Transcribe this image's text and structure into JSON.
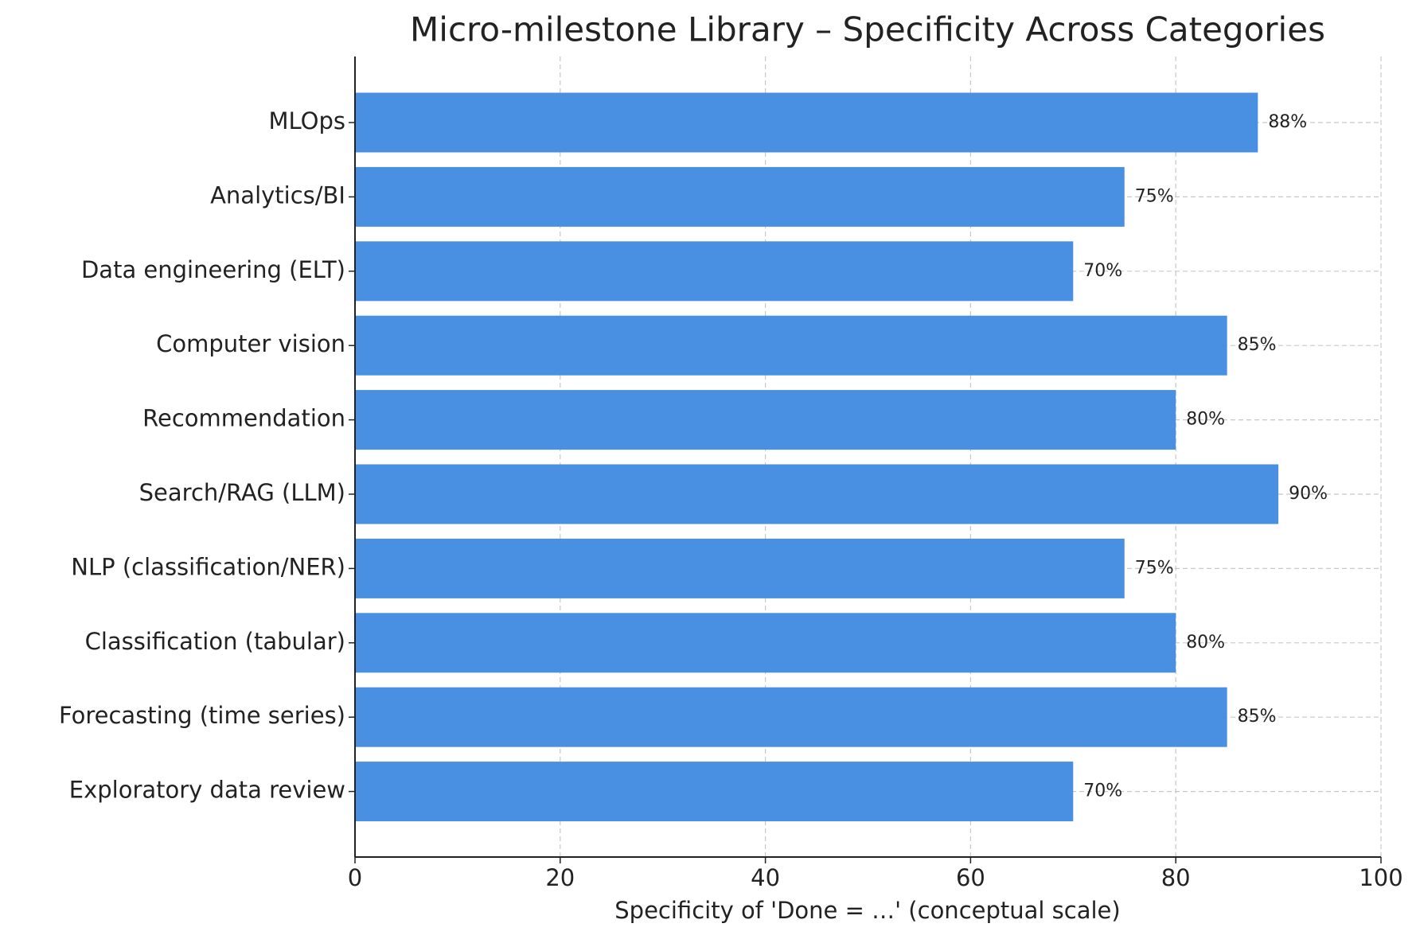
{
  "chart_data": {
    "type": "bar",
    "orientation": "horizontal",
    "title": "Micro-milestone Library – Specificity Across Categories",
    "x_label": "Specificity of 'Done = …' (conceptual scale)",
    "categories": [
      "MLOps",
      "Analytics/BI",
      "Data engineering (ELT)",
      "Computer vision",
      "Recommendation",
      "Search/RAG (LLM)",
      "NLP (classification/NER)",
      "Classification (tabular)",
      "Forecasting (time series)",
      "Exploratory data review"
    ],
    "values": [
      88,
      75,
      70,
      85,
      80,
      90,
      75,
      80,
      85,
      70
    ],
    "value_labels": [
      "88%",
      "75%",
      "70%",
      "85%",
      "80%",
      "90%",
      "75%",
      "80%",
      "85%",
      "70%"
    ],
    "color": "#4a90e2",
    "xlim": [
      0,
      100
    ],
    "xticks": [
      0,
      20,
      40,
      60,
      80,
      100
    ],
    "grid": true
  }
}
